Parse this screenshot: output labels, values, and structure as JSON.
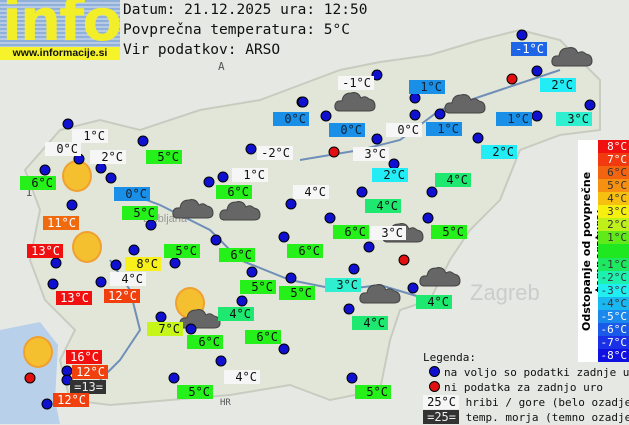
{
  "logo": {
    "text": "info",
    "url": "www.informacije.si"
  },
  "header": {
    "date_line": "Datum: 21.12.2025 ura: 12:50",
    "avg_line": "Povprečna temperatura: 5°C",
    "source_line": "Vir podatkov: ARSO"
  },
  "map_labels": [
    "A",
    "I",
    "HR",
    "Zagreb",
    "Ljubljana"
  ],
  "stations": [
    {
      "t": "1°C",
      "k": "w"
    },
    {
      "t": "0°C",
      "k": "w"
    },
    {
      "t": "2°C",
      "k": "w"
    },
    {
      "t": "5°C",
      "k": "g"
    },
    {
      "t": "6°C",
      "k": "g"
    },
    {
      "t": "0°C",
      "k": "b"
    },
    {
      "t": "5°C",
      "k": "g"
    },
    {
      "t": "11°C",
      "k": "o"
    },
    {
      "t": "0°C",
      "k": "b"
    },
    {
      "t": "-2°C",
      "k": "w"
    },
    {
      "t": "1°C",
      "k": "w"
    },
    {
      "t": "6°C",
      "k": "g"
    },
    {
      "t": "4°C",
      "k": "w"
    },
    {
      "t": "-1°C",
      "k": "db"
    },
    {
      "t": "-1°C",
      "k": "w"
    },
    {
      "t": "1°C",
      "k": "b"
    },
    {
      "t": "2°C",
      "k": "c"
    },
    {
      "t": "0°C",
      "k": "b"
    },
    {
      "t": "0°C",
      "k": "w"
    },
    {
      "t": "1°C",
      "k": "b"
    },
    {
      "t": "1°C",
      "k": "b"
    },
    {
      "t": "3°C",
      "k": "t"
    },
    {
      "t": "3°C",
      "k": "w"
    },
    {
      "t": "2°C",
      "k": "c"
    },
    {
      "t": "2°C",
      "k": "c"
    },
    {
      "t": "4°C",
      "k": "g2"
    },
    {
      "t": "4°C",
      "k": "g2"
    },
    {
      "t": "6°C",
      "k": "g"
    },
    {
      "t": "3°C",
      "k": "w"
    },
    {
      "t": "5°C",
      "k": "g"
    },
    {
      "t": "13°C",
      "k": "r"
    },
    {
      "t": "5°C",
      "k": "g"
    },
    {
      "t": "6°C",
      "k": "g"
    },
    {
      "t": "6°C",
      "k": "g"
    },
    {
      "t": "8°C",
      "k": "y"
    },
    {
      "t": "4°C",
      "k": "w"
    },
    {
      "t": "13°C",
      "k": "r"
    },
    {
      "t": "12°C",
      "k": "or"
    },
    {
      "t": "5°C",
      "k": "g"
    },
    {
      "t": "5°C",
      "k": "g"
    },
    {
      "t": "4°C",
      "k": "g2"
    },
    {
      "t": "7°C",
      "k": "yg"
    },
    {
      "t": "6°C",
      "k": "g"
    },
    {
      "t": "6°C",
      "k": "g"
    },
    {
      "t": "16°C",
      "k": "r"
    },
    {
      "t": "12°C",
      "k": "or"
    },
    {
      "t": "=13=",
      "k": "dk"
    },
    {
      "t": "12°C",
      "k": "or"
    },
    {
      "t": "4°C",
      "k": "w"
    },
    {
      "t": "5°C",
      "k": "g"
    },
    {
      "t": "3°C",
      "k": "t"
    },
    {
      "t": "4°C",
      "k": "g2"
    },
    {
      "t": "4°C",
      "k": "g2"
    },
    {
      "t": "5°C",
      "k": "g"
    }
  ],
  "scale": {
    "title": "Odstopanje od povprečne temperature:",
    "rows": [
      {
        "t": "8°C",
        "c": "#f01010"
      },
      {
        "t": "7°C",
        "c": "#f23a10"
      },
      {
        "t": "6°C",
        "c": "#f26410"
      },
      {
        "t": "5°C",
        "c": "#f59010"
      },
      {
        "t": "4°C",
        "c": "#f7c010"
      },
      {
        "t": "3°C",
        "c": "#f5f010"
      },
      {
        "t": "2°C",
        "c": "#c0f01a"
      },
      {
        "t": "1°C",
        "c": "#60ea1a"
      },
      {
        "t": "",
        "c": "#20e820"
      },
      {
        "t": "-1°C",
        "c": "#1ee860"
      },
      {
        "t": "-2°C",
        "c": "#1ef0b0"
      },
      {
        "t": "-3°C",
        "c": "#20eef0"
      },
      {
        "t": "-4°C",
        "c": "#1ab8f0"
      },
      {
        "t": "-5°C",
        "c": "#1a88ec"
      },
      {
        "t": "-6°C",
        "c": "#1a5ae8"
      },
      {
        "t": "-7°C",
        "c": "#1a30e6"
      },
      {
        "t": "-8°C",
        "c": "#1010e0"
      }
    ]
  },
  "legend": {
    "title": "Legenda:",
    "available": "na voljo so podatki zadnje ure",
    "no_data": "ni podatka za zadnjo uro",
    "hill_sample": "25°C",
    "hill": "hribi / gore (belo ozadje)",
    "sea_sample": "=25=",
    "sea": "temp. morja (temno ozadje)"
  },
  "colors": {
    "station_dot": "#1010d0",
    "no_data_dot": "#e01010",
    "sea": "#b8d0ea"
  }
}
